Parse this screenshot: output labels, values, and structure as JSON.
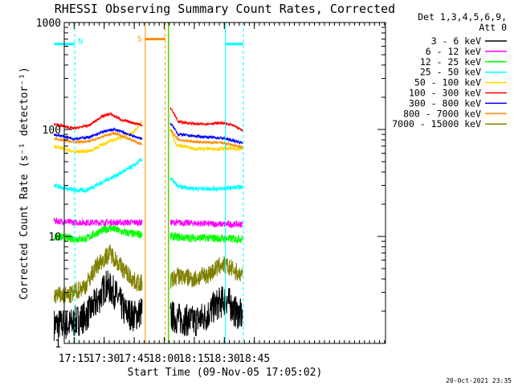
{
  "chart_data": {
    "type": "line",
    "title": "RHESSI Observing Summary Count Rates, Corrected",
    "xlabel": "Start Time (09-Nov-05 17:05:02)",
    "ylabel": "Corrected Count Rate (s⁻¹ detector⁻¹)",
    "yscale": "log",
    "ylim": [
      1,
      1000
    ],
    "xlim_min": [
      5.05,
      165.5
    ],
    "x_unit": "minutes since 17:05:02",
    "x_ticks": [
      {
        "min": 10,
        "label": "17:15"
      },
      {
        "min": 25,
        "label": "17:30"
      },
      {
        "min": 40,
        "label": "17:45"
      },
      {
        "min": 55,
        "label": "18:00"
      },
      {
        "min": 70,
        "label": "18:15"
      },
      {
        "min": 85,
        "label": "18:30"
      },
      {
        "min": 100,
        "label": "18:45"
      }
    ],
    "y_ticks": [
      {
        "v": 1,
        "label": "1"
      },
      {
        "v": 10,
        "label": "10"
      },
      {
        "v": 100,
        "label": "100"
      },
      {
        "v": 1000,
        "label": "1000"
      }
    ],
    "legend": {
      "header1": "Det 1,3,4,5,6,9,",
      "header2": "Att 0",
      "placement": "right"
    },
    "series": [
      {
        "name": "3 - 6 keV",
        "color": "#000000",
        "seg1": [
          [
            0,
            1.5
          ],
          [
            8,
            1.5
          ],
          [
            16,
            1.8
          ],
          [
            22,
            2.5
          ],
          [
            26,
            3.5
          ],
          [
            30,
            3.0
          ],
          [
            35,
            2.0
          ],
          [
            40,
            1.8
          ],
          [
            44,
            2.0
          ]
        ],
        "seg2": [
          [
            58,
            1.8
          ],
          [
            62,
            1.7
          ],
          [
            70,
            1.6
          ],
          [
            76,
            1.8
          ],
          [
            80,
            2.2
          ],
          [
            86,
            2.6
          ],
          [
            90,
            2.0
          ],
          [
            94,
            1.8
          ]
        ],
        "noise": 0.35
      },
      {
        "name": "6 - 12 keV",
        "color": "#ff00ff",
        "seg1": [
          [
            0,
            14
          ],
          [
            10,
            13.5
          ],
          [
            20,
            13.5
          ],
          [
            30,
            13.5
          ],
          [
            44,
            13.5
          ]
        ],
        "seg2": [
          [
            58,
            13.5
          ],
          [
            70,
            13.3
          ],
          [
            84,
            13
          ],
          [
            94,
            13
          ]
        ],
        "noise": 0.07
      },
      {
        "name": "12 - 25 keV",
        "color": "#00ff00",
        "seg1": [
          [
            0,
            10
          ],
          [
            10,
            9.5
          ],
          [
            16,
            9.5
          ],
          [
            22,
            11
          ],
          [
            28,
            12
          ],
          [
            34,
            11
          ],
          [
            40,
            10.5
          ],
          [
            44,
            10.5
          ]
        ],
        "seg2": [
          [
            58,
            10
          ],
          [
            66,
            9.7
          ],
          [
            76,
            9.7
          ],
          [
            86,
            9.5
          ],
          [
            94,
            9.5
          ]
        ],
        "noise": 0.09
      },
      {
        "name": "25 - 50 keV",
        "color": "#00ffff",
        "seg1": [
          [
            0,
            30
          ],
          [
            10,
            27
          ],
          [
            16,
            27
          ],
          [
            24,
            32
          ],
          [
            32,
            38
          ],
          [
            40,
            46
          ],
          [
            44,
            53
          ]
        ],
        "seg2": [
          [
            58,
            35
          ],
          [
            62,
            29
          ],
          [
            72,
            28
          ],
          [
            84,
            28
          ],
          [
            94,
            29
          ]
        ],
        "noise": 0.05
      },
      {
        "name": "50 - 100 keV",
        "color": "#ffd700",
        "seg1": [
          [
            0,
            70
          ],
          [
            10,
            62
          ],
          [
            18,
            63
          ],
          [
            26,
            75
          ],
          [
            34,
            85
          ],
          [
            40,
            95
          ],
          [
            44,
            118
          ]
        ],
        "seg2": [
          [
            58,
            100
          ],
          [
            61,
            72
          ],
          [
            70,
            66
          ],
          [
            80,
            66
          ],
          [
            94,
            66
          ]
        ],
        "noise": 0.04
      },
      {
        "name": "100 - 300 keV",
        "color": "#ff0000",
        "seg1": [
          [
            0,
            112
          ],
          [
            10,
            102
          ],
          [
            18,
            110
          ],
          [
            24,
            133
          ],
          [
            28,
            140
          ],
          [
            34,
            122
          ],
          [
            40,
            115
          ],
          [
            44,
            110
          ]
        ],
        "seg2": [
          [
            58,
            160
          ],
          [
            62,
            118
          ],
          [
            72,
            112
          ],
          [
            84,
            115
          ],
          [
            90,
            108
          ],
          [
            94,
            98
          ]
        ],
        "noise": 0.03
      },
      {
        "name": "300 - 800 keV",
        "color": "#0000ff",
        "seg1": [
          [
            0,
            90
          ],
          [
            10,
            82
          ],
          [
            18,
            85
          ],
          [
            26,
            97
          ],
          [
            30,
            100
          ],
          [
            36,
            92
          ],
          [
            40,
            86
          ],
          [
            44,
            82
          ]
        ],
        "seg2": [
          [
            58,
            115
          ],
          [
            62,
            90
          ],
          [
            72,
            86
          ],
          [
            84,
            83
          ],
          [
            94,
            75
          ]
        ],
        "noise": 0.03
      },
      {
        "name": "800 - 7000 keV",
        "color": "#ff8c00",
        "seg1": [
          [
            0,
            82
          ],
          [
            10,
            76
          ],
          [
            18,
            78
          ],
          [
            26,
            88
          ],
          [
            30,
            92
          ],
          [
            36,
            84
          ],
          [
            40,
            78
          ],
          [
            44,
            72
          ]
        ],
        "seg2": [
          [
            58,
            100
          ],
          [
            62,
            80
          ],
          [
            72,
            76
          ],
          [
            84,
            75
          ],
          [
            94,
            68
          ]
        ],
        "noise": 0.03
      },
      {
        "name": "7000 - 15000 keV",
        "color": "#808000",
        "seg1": [
          [
            0,
            2.8
          ],
          [
            8,
            2.8
          ],
          [
            16,
            3.5
          ],
          [
            22,
            5.5
          ],
          [
            28,
            7.0
          ],
          [
            34,
            5.0
          ],
          [
            40,
            3.8
          ],
          [
            44,
            3.6
          ]
        ],
        "seg2": [
          [
            58,
            3.8
          ],
          [
            62,
            4.3
          ],
          [
            70,
            4.0
          ],
          [
            78,
            4.5
          ],
          [
            84,
            5.5
          ],
          [
            90,
            4.8
          ],
          [
            94,
            4.2
          ]
        ],
        "noise": 0.2
      }
    ],
    "annotations": {
      "night_bars": [
        {
          "label": "N",
          "x0": 0,
          "x1": 10.3,
          "v": 630,
          "color": "#00ffff"
        },
        {
          "x0": 85.5,
          "x1": 94.5,
          "v": 630,
          "color": "#00ffff"
        }
      ],
      "saa_bar": {
        "label": "S",
        "x0": 45.5,
        "x1": 55.5,
        "v": 700,
        "color": "#ff8c00"
      },
      "vlines": [
        {
          "min": 10.3,
          "style": "dashed",
          "color": "#00ffff"
        },
        {
          "min": 45.5,
          "style": "solid",
          "color": "#ff8c00"
        },
        {
          "min": 55.5,
          "style": "dashed",
          "color": "#ff8c00"
        },
        {
          "min": 57.2,
          "style": "solid",
          "color": "#ff8c00"
        },
        {
          "min": 57.0,
          "style": "solid",
          "color": "#00ff00"
        },
        {
          "min": 85.5,
          "style": "solid",
          "color": "#00ffff"
        },
        {
          "min": 94.5,
          "style": "dashed",
          "color": "#00ffff"
        }
      ]
    },
    "footer": "20-Oct-2021 23:35"
  }
}
